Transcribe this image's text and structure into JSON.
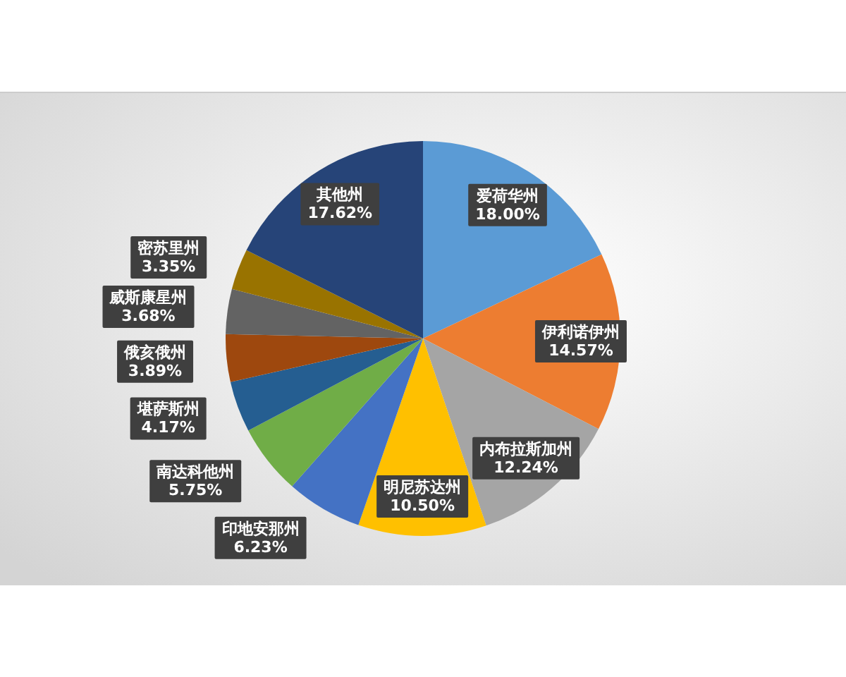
{
  "chart_data": {
    "type": "pie",
    "categories": [
      "爱荷华州",
      "伊利诺伊州",
      "内布拉斯加州",
      "明尼苏达州",
      "印地安那州",
      "南达科他州",
      "堪萨斯州",
      "俄亥俄州",
      "威斯康星州",
      "密苏里州",
      "其他州"
    ],
    "values": [
      18.0,
      14.57,
      12.24,
      10.5,
      6.23,
      5.75,
      4.17,
      3.89,
      3.68,
      3.35,
      17.62
    ],
    "value_labels": [
      "18.00%",
      "14.57%",
      "12.24%",
      "10.50%",
      "6.23%",
      "5.75%",
      "4.17%",
      "3.89%",
      "3.68%",
      "3.35%",
      "17.62%"
    ],
    "colors": [
      "#5b9bd5",
      "#ed7d31",
      "#a5a5a5",
      "#ffc000",
      "#4472c4",
      "#70ad47",
      "#255e91",
      "#9e480e",
      "#636363",
      "#997300",
      "#264478"
    ]
  }
}
